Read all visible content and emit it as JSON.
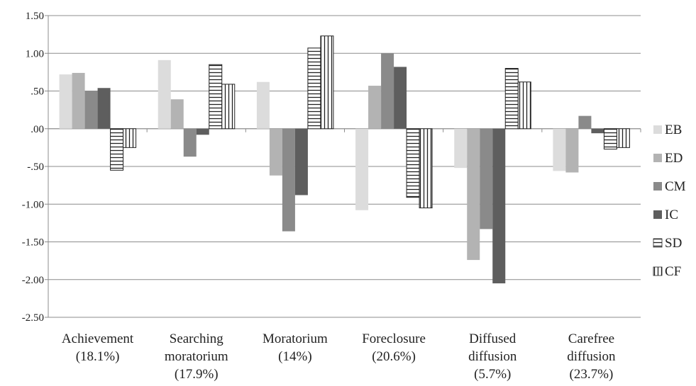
{
  "chart_data": {
    "type": "bar",
    "categories": [
      [
        "Achievement",
        "(18.1%)"
      ],
      [
        "Searching",
        "moratorium",
        "(17.9%)"
      ],
      [
        "Moratorium",
        "(14%)"
      ],
      [
        "Foreclosure",
        "(20.6%)"
      ],
      [
        "Diffused",
        "diffusion",
        "(5.7%)"
      ],
      [
        "Carefree",
        "diffusion",
        "(23.7%)"
      ]
    ],
    "series": [
      {
        "name": "EB",
        "color": "#dcdcdc",
        "pattern": "solid",
        "values": [
          0.72,
          0.91,
          0.62,
          -1.08,
          -0.52,
          -0.56
        ]
      },
      {
        "name": "ED",
        "color": "#b3b3b3",
        "pattern": "solid",
        "values": [
          0.74,
          0.39,
          -0.62,
          0.57,
          -1.74,
          -0.58
        ]
      },
      {
        "name": "CM",
        "color": "#8a8a8a",
        "pattern": "solid",
        "values": [
          0.5,
          -0.37,
          -1.36,
          1.0,
          -1.33,
          0.17
        ]
      },
      {
        "name": "IC",
        "color": "#5e5e5e",
        "pattern": "solid",
        "values": [
          0.54,
          -0.08,
          -0.88,
          0.82,
          -2.05,
          -0.06
        ]
      },
      {
        "name": "SD",
        "color": "#222222",
        "pattern": "horizontal",
        "values": [
          -0.55,
          0.85,
          1.07,
          -0.91,
          0.8,
          -0.27
        ]
      },
      {
        "name": "CF",
        "color": "#222222",
        "pattern": "vertical",
        "values": [
          -0.25,
          0.59,
          1.23,
          -1.05,
          0.62,
          -0.25
        ]
      }
    ],
    "ylim": [
      -2.5,
      1.5
    ],
    "yticks": [
      1.5,
      1.0,
      0.5,
      0.0,
      -0.5,
      -1.0,
      -1.5,
      -2.0,
      -2.5
    ],
    "ytick_labels": [
      "1.50",
      "1.00",
      ".50",
      ".00",
      "-.50",
      "-1.00",
      "-1.50",
      "-2.00",
      "-2.50"
    ],
    "grid": true,
    "legend": "right",
    "title": "",
    "xlabel": "",
    "ylabel": ""
  }
}
